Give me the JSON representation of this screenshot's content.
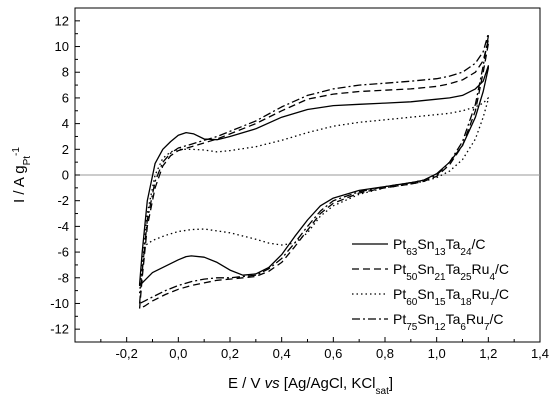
{
  "chart_data": {
    "type": "line",
    "xlim": [
      -0.4,
      1.4
    ],
    "ylim": [
      -13,
      13
    ],
    "xticks": [
      "-0,2",
      "0,0",
      "0,2",
      "0,4",
      "0,6",
      "0,8",
      "1,0",
      "1,2",
      "1,4"
    ],
    "yticks": [
      "12",
      "10",
      "8",
      "6",
      "4",
      "2",
      "0",
      "-2",
      "-4",
      "-6",
      "-8",
      "-10",
      "-12"
    ],
    "xlabel_parts": [
      {
        "t": "E / V ",
        "style": "n"
      },
      {
        "t": "vs",
        "style": "i"
      },
      {
        "t": " [Ag/AgCl, KCl",
        "style": "n"
      },
      {
        "t": "sat",
        "style": "sub"
      },
      {
        "t": "]",
        "style": "n"
      }
    ],
    "ylabel_parts": [
      {
        "t": "I / A g",
        "style": "n"
      },
      {
        "t": "Pt",
        "style": "sub"
      },
      {
        "t": "-1",
        "style": "sup"
      }
    ],
    "zero_line": true,
    "legend_position": "bottom-right",
    "series": [
      {
        "name_parts": [
          {
            "t": "Pt",
            "style": "n"
          },
          {
            "t": "63",
            "style": "sub"
          },
          {
            "t": "Sn",
            "style": "n"
          },
          {
            "t": "13",
            "style": "sub"
          },
          {
            "t": "Ta",
            "style": "n"
          },
          {
            "t": "24",
            "style": "sub"
          },
          {
            "t": "/C",
            "style": "n"
          }
        ],
        "dash": "solid",
        "x": [
          -0.15,
          -0.14,
          -0.12,
          -0.09,
          -0.06,
          -0.03,
          0.0,
          0.03,
          0.06,
          0.1,
          0.15,
          0.2,
          0.3,
          0.4,
          0.5,
          0.6,
          0.7,
          0.8,
          0.9,
          1.0,
          1.05,
          1.1,
          1.15,
          1.18,
          1.2,
          1.2,
          1.18,
          1.15,
          1.1,
          1.05,
          1.0,
          0.95,
          0.9,
          0.8,
          0.7,
          0.6,
          0.55,
          0.5,
          0.45,
          0.4,
          0.35,
          0.3,
          0.25,
          0.2,
          0.15,
          0.1,
          0.05,
          0.03,
          0.0,
          -0.05,
          -0.1,
          -0.13,
          -0.15
        ],
        "y": [
          -8.5,
          -6.0,
          -2.0,
          0.9,
          2.0,
          2.6,
          3.1,
          3.3,
          3.2,
          2.8,
          2.75,
          3.0,
          3.6,
          4.5,
          5.1,
          5.4,
          5.5,
          5.6,
          5.7,
          5.9,
          6.0,
          6.2,
          6.7,
          7.3,
          8.5,
          8.3,
          6.5,
          4.5,
          2.3,
          1.0,
          0.1,
          -0.4,
          -0.6,
          -0.9,
          -1.2,
          -1.8,
          -2.4,
          -3.5,
          -4.8,
          -6.2,
          -7.2,
          -7.7,
          -7.8,
          -7.4,
          -6.8,
          -6.4,
          -6.3,
          -6.35,
          -6.6,
          -7.1,
          -7.6,
          -8.2,
          -8.6
        ]
      },
      {
        "name_parts": [
          {
            "t": "Pt",
            "style": "n"
          },
          {
            "t": "50",
            "style": "sub"
          },
          {
            "t": "Sn",
            "style": "n"
          },
          {
            "t": "21",
            "style": "sub"
          },
          {
            "t": "Ta",
            "style": "n"
          },
          {
            "t": "25",
            "style": "sub"
          },
          {
            "t": "Ru",
            "style": "n"
          },
          {
            "t": "4",
            "style": "sub"
          },
          {
            "t": "/C",
            "style": "n"
          }
        ],
        "dash": "dash",
        "x": [
          -0.15,
          -0.14,
          -0.12,
          -0.09,
          -0.06,
          -0.03,
          0.0,
          0.05,
          0.1,
          0.15,
          0.2,
          0.3,
          0.4,
          0.5,
          0.6,
          0.7,
          0.8,
          0.9,
          1.0,
          1.05,
          1.1,
          1.15,
          1.18,
          1.2,
          1.2,
          1.18,
          1.15,
          1.1,
          1.05,
          1.0,
          0.95,
          0.9,
          0.8,
          0.7,
          0.6,
          0.55,
          0.5,
          0.45,
          0.4,
          0.35,
          0.3,
          0.25,
          0.2,
          0.15,
          0.1,
          0.05,
          0.0,
          -0.05,
          -0.1,
          -0.13,
          -0.15
        ],
        "y": [
          -10.4,
          -8.0,
          -4.0,
          -1.0,
          0.7,
          1.5,
          1.9,
          2.2,
          2.5,
          2.8,
          3.2,
          4.0,
          5.0,
          5.9,
          6.3,
          6.5,
          6.6,
          6.7,
          6.9,
          7.1,
          7.4,
          8.0,
          8.9,
          10.5,
          10.2,
          8.0,
          5.0,
          2.3,
          0.8,
          -0.1,
          -0.5,
          -0.7,
          -1.0,
          -1.4,
          -2.2,
          -3.0,
          -4.3,
          -5.6,
          -6.8,
          -7.5,
          -7.9,
          -8.0,
          -8.1,
          -8.2,
          -8.4,
          -8.6,
          -8.9,
          -9.3,
          -9.8,
          -10.2,
          -10.4
        ]
      },
      {
        "name_parts": [
          {
            "t": "Pt",
            "style": "n"
          },
          {
            "t": "60",
            "style": "sub"
          },
          {
            "t": "Sn",
            "style": "n"
          },
          {
            "t": "15",
            "style": "sub"
          },
          {
            "t": "Ta",
            "style": "n"
          },
          {
            "t": "18",
            "style": "sub"
          },
          {
            "t": "Ru",
            "style": "n"
          },
          {
            "t": "7",
            "style": "sub"
          },
          {
            "t": "/C",
            "style": "n"
          }
        ],
        "dash": "dot",
        "x": [
          -0.15,
          -0.14,
          -0.12,
          -0.09,
          -0.06,
          -0.03,
          0.0,
          0.05,
          0.1,
          0.15,
          0.2,
          0.3,
          0.4,
          0.5,
          0.6,
          0.7,
          0.8,
          0.9,
          1.0,
          1.05,
          1.1,
          1.15,
          1.18,
          1.2,
          1.2,
          1.18,
          1.15,
          1.1,
          1.05,
          1.0,
          0.95,
          0.9,
          0.8,
          0.7,
          0.6,
          0.55,
          0.5,
          0.45,
          0.4,
          0.35,
          0.3,
          0.2,
          0.1,
          0.05,
          0.0,
          -0.05,
          -0.1,
          -0.13,
          -0.15
        ],
        "y": [
          -9.2,
          -7.0,
          -3.0,
          0.0,
          1.3,
          1.8,
          2.0,
          2.0,
          1.95,
          1.8,
          1.9,
          2.2,
          2.7,
          3.3,
          3.8,
          4.1,
          4.3,
          4.5,
          4.7,
          4.8,
          5.0,
          5.3,
          5.6,
          6.0,
          5.9,
          4.5,
          2.8,
          1.2,
          0.3,
          -0.2,
          -0.5,
          -0.7,
          -1.0,
          -1.5,
          -2.4,
          -3.2,
          -4.5,
          -5.3,
          -5.45,
          -5.3,
          -5.0,
          -4.5,
          -4.2,
          -4.25,
          -4.4,
          -4.7,
          -5.1,
          -5.5,
          -9.2
        ]
      },
      {
        "name_parts": [
          {
            "t": "Pt",
            "style": "n"
          },
          {
            "t": "75",
            "style": "sub"
          },
          {
            "t": "Sn",
            "style": "n"
          },
          {
            "t": "12",
            "style": "sub"
          },
          {
            "t": "Ta",
            "style": "n"
          },
          {
            "t": "6",
            "style": "sub"
          },
          {
            "t": "Ru",
            "style": "n"
          },
          {
            "t": "7",
            "style": "sub"
          },
          {
            "t": "/C",
            "style": "n"
          }
        ],
        "dash": "dashdot",
        "x": [
          -0.15,
          -0.14,
          -0.12,
          -0.09,
          -0.06,
          -0.03,
          0.0,
          0.05,
          0.1,
          0.15,
          0.2,
          0.3,
          0.4,
          0.5,
          0.6,
          0.7,
          0.8,
          0.9,
          1.0,
          1.05,
          1.1,
          1.15,
          1.18,
          1.2,
          1.2,
          1.18,
          1.15,
          1.1,
          1.05,
          1.0,
          0.95,
          0.9,
          0.8,
          0.7,
          0.6,
          0.55,
          0.5,
          0.45,
          0.4,
          0.35,
          0.3,
          0.25,
          0.2,
          0.15,
          0.1,
          0.05,
          0.0,
          -0.05,
          -0.1,
          -0.13,
          -0.15
        ],
        "y": [
          -10.0,
          -7.5,
          -3.5,
          -0.5,
          1.0,
          1.7,
          2.1,
          2.4,
          2.7,
          3.0,
          3.4,
          4.2,
          5.3,
          6.2,
          6.7,
          7.0,
          7.15,
          7.3,
          7.5,
          7.7,
          8.0,
          8.7,
          9.6,
          11.0,
          10.8,
          8.5,
          5.5,
          2.6,
          1.0,
          0.0,
          -0.4,
          -0.6,
          -0.9,
          -1.3,
          -2.0,
          -2.8,
          -4.0,
          -5.3,
          -6.5,
          -7.3,
          -7.8,
          -7.9,
          -8.0,
          -8.0,
          -8.1,
          -8.3,
          -8.6,
          -9.0,
          -9.5,
          -9.8,
          -10.0
        ]
      }
    ]
  }
}
